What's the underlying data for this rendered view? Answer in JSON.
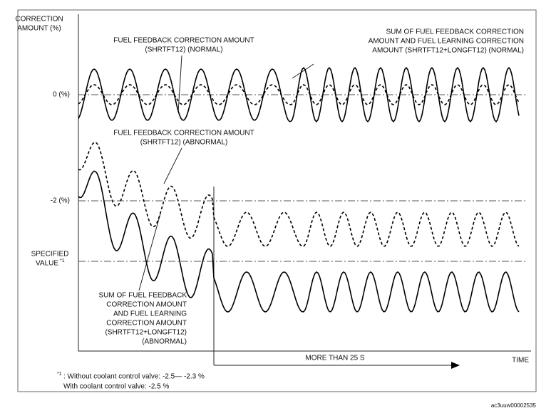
{
  "axis": {
    "y_label": [
      "CORRECTION",
      "AMOUNT (%)"
    ],
    "x_label": "TIME",
    "levels": [
      "0 (%)",
      "-2 (%)"
    ],
    "specified": [
      "SPECIFIED",
      "VALUE"
    ],
    "specified_note": "*1"
  },
  "annotations": [
    [
      "FUEL FEEDBACK CORRECTION AMOUNT",
      "(SHRTFT12) (NORMAL)"
    ],
    [
      "SUM OF FUEL FEEDBACK CORRECTION",
      "AMOUNT AND FUEL LEARNING CORRECTION",
      "AMOUNT (SHRTFT12+LONGFT12) (NORMAL)"
    ],
    [
      "FUEL FEEDBACK CORRECTION AMOUNT",
      "(SHRTFT12) (ABNORMAL)"
    ],
    [
      "SUM OF FUEL FEEDBACK",
      "CORRECTION AMOUNT",
      "AND FUEL LEARNING",
      "CORRECTION AMOUNT",
      "(SHRTFT12+LONGFT12)",
      "(ABNORMAL)"
    ]
  ],
  "duration": "MORE THAN 25 S",
  "footnote": {
    "mark": "*1",
    "lines": [
      ": Without coolant control valve: -2.5— -2.3 %",
      "With coolant control valve: -2.5 %"
    ]
  },
  "image_id": "ac3uuw00002535"
}
